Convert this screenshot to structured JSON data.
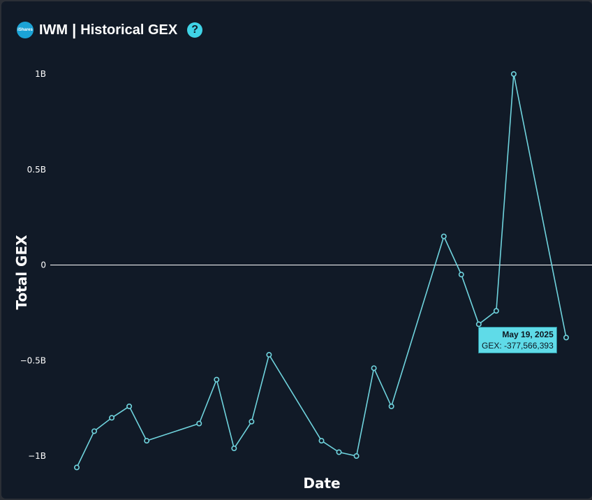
{
  "header": {
    "logo_text": "iShares",
    "ticker": "IWM",
    "separator": "|",
    "title": "Historical GEX",
    "help_symbol": "?"
  },
  "colors": {
    "background": "#111a27",
    "line": "#6fd3dd",
    "zero_line": "#ffffff",
    "tooltip_bg": "#5fdbe8"
  },
  "tooltip": {
    "date": "May 19, 2025",
    "value": "GEX: -377,566,393"
  },
  "chart_data": {
    "type": "line",
    "title": "IWM | Historical GEX",
    "xlabel": "Date",
    "ylabel": "Total GEX",
    "ylim": [
      -1.0,
      1.0
    ],
    "yticks": [
      1.0,
      0.5,
      0,
      -0.5,
      -1.0
    ],
    "ytick_labels": [
      "1B",
      "0.5B",
      "0",
      "−0.5B",
      "−1B"
    ],
    "grid": false,
    "series": [
      {
        "values": [
          -1.06,
          -0.87,
          -0.8,
          -0.74,
          -0.92,
          -0.83,
          -0.6,
          -0.96,
          -0.82,
          -0.47,
          -0.92,
          -0.98,
          -1.0,
          -0.54,
          -0.74,
          0.15,
          -0.05,
          -0.31,
          -0.24,
          1.0,
          -0.38
        ],
        "x_index": [
          0,
          1,
          2,
          3,
          4,
          7,
          8,
          9,
          10,
          11,
          14,
          15,
          16,
          17,
          18,
          21,
          22,
          23,
          24,
          25,
          28
        ]
      }
    ]
  }
}
